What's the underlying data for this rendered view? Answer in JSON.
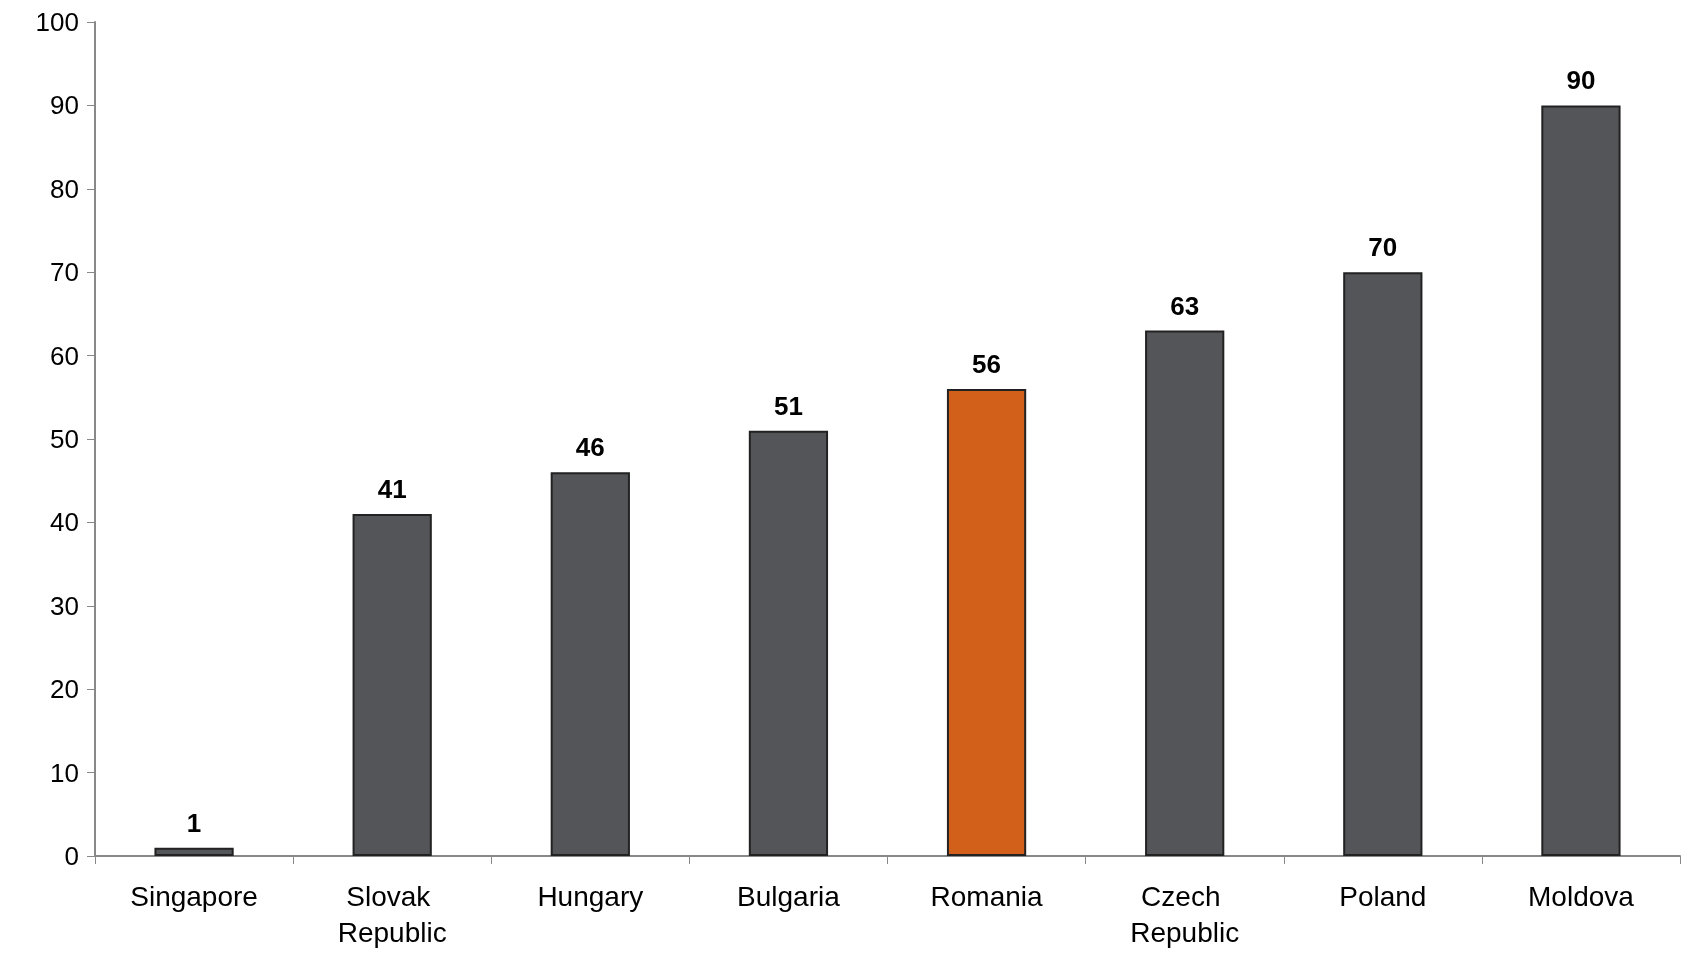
{
  "chart_data": {
    "type": "bar",
    "categories": [
      "Singapore",
      "Slovak Republic",
      "Hungary",
      "Bulgaria",
      "Romania",
      "Czech Republic",
      "Poland",
      "Moldova"
    ],
    "values": [
      1,
      41,
      46,
      51,
      56,
      63,
      70,
      90
    ],
    "colors": [
      "#545559",
      "#545559",
      "#545559",
      "#545559",
      "#d2601a",
      "#545559",
      "#545559",
      "#545559"
    ],
    "ylim": [
      0,
      100
    ],
    "yticks": [
      0,
      10,
      20,
      30,
      40,
      50,
      60,
      70,
      80,
      90,
      100
    ],
    "data_labels": true
  }
}
